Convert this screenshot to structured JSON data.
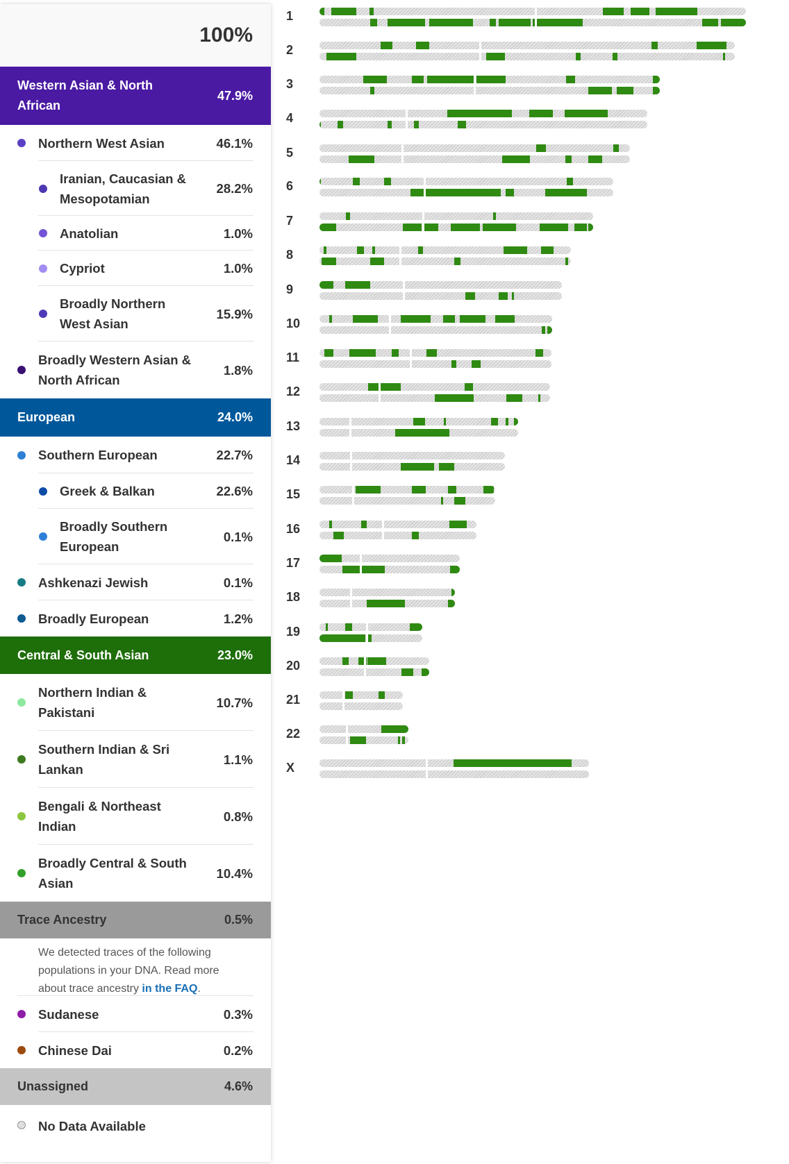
{
  "summary": {
    "total": "100%"
  },
  "sections": [
    {
      "id": "wana",
      "label": "Western Asian & North African",
      "pct": "47.9%",
      "color": "#4a1aa3",
      "rows": [
        {
          "label": "Northern West Asian",
          "pct": "46.1%",
          "level": 1,
          "dot": "#5b3fc4",
          "h": 52
        },
        {
          "label": "Iranian, Caucasian & Mesopotamian",
          "pct": "28.2%",
          "level": 2,
          "dot": "#4e38b2",
          "h": 79
        },
        {
          "label": "Anatolian",
          "pct": "1.0%",
          "level": 2,
          "dot": "#7354d6",
          "h": 50
        },
        {
          "label": "Cypriot",
          "pct": "1.0%",
          "level": 2,
          "dot": "#a28df2",
          "h": 51
        },
        {
          "label": "Broadly Northern West Asian",
          "pct": "15.9%",
          "level": 2,
          "dot": "#4e3ab8",
          "h": 80
        },
        {
          "label": "Broadly Western Asian & North African",
          "pct": "1.8%",
          "level": 1,
          "dot": "#3a0f73",
          "h": 82
        }
      ]
    },
    {
      "id": "eur",
      "label": "European",
      "pct": "24.0%",
      "color": "#00589a",
      "rows": [
        {
          "label": "Southern European",
          "pct": "22.7%",
          "level": 1,
          "dot": "#2d7fd6",
          "h": 53
        },
        {
          "label": "Greek & Balkan",
          "pct": "22.6%",
          "level": 2,
          "dot": "#0f4ca6",
          "h": 51
        },
        {
          "label": "Broadly Southern European",
          "pct": "0.1%",
          "level": 2,
          "dot": "#2f7fd9",
          "h": 80
        },
        {
          "label": "Ashkenazi Jewish",
          "pct": "0.1%",
          "level": 1,
          "dot": "#177d84",
          "h": 52
        },
        {
          "label": "Broadly European",
          "pct": "1.2%",
          "level": 1,
          "dot": "#0e5a91",
          "h": 52
        }
      ]
    },
    {
      "id": "csa",
      "label": "Central & South Asian",
      "pct": "23.0%",
      "color": "#1e6e0a",
      "rows": [
        {
          "label": "Northern Indian & Pakistani",
          "pct": "10.7%",
          "level": 1,
          "dot": "#8fe8a0",
          "h": 82
        },
        {
          "label": "Southern Indian & Sri Lankan",
          "pct": "1.1%",
          "level": 1,
          "dot": "#3d7a1f",
          "h": 82
        },
        {
          "label": "Bengali & Northeast Indian",
          "pct": "0.8%",
          "level": 1,
          "dot": "#8cc63f",
          "h": 82
        },
        {
          "label": "Broadly Central & South Asian",
          "pct": "10.4%",
          "level": 1,
          "dot": "#33a02c",
          "h": 82
        }
      ]
    }
  ],
  "trace": {
    "label": "Trace Ancestry",
    "pct": "0.5%",
    "color": "#9a9a9a",
    "text_before": "We detected traces of the following populations in your DNA. Read more about trace ancestry ",
    "link_text": "in the FAQ",
    "text_after": ".",
    "rows": [
      {
        "label": "Sudanese",
        "pct": "0.3%",
        "level": 1,
        "dot": "#8e1ea8",
        "h": 52
      },
      {
        "label": "Chinese Dai",
        "pct": "0.2%",
        "level": 1,
        "dot": "#9b4a0e",
        "h": 52
      }
    ]
  },
  "unassigned": {
    "label": "Unassigned",
    "pct": "4.6%",
    "color": "#c4c4c4"
  },
  "no_data": {
    "label": "No Data Available"
  },
  "chromosomes": [
    {
      "n": "1",
      "y": 23,
      "len": 614,
      "c": 310,
      "t1": [
        [
          0,
          7
        ],
        [
          17,
          36
        ],
        [
          72,
          6
        ],
        [
          408,
          30
        ],
        [
          448,
          27
        ],
        [
          484,
          60
        ]
      ],
      "t2": [
        [
          73,
          10
        ],
        [
          98,
          54
        ],
        [
          158,
          63
        ],
        [
          245,
          9
        ],
        [
          258,
          46
        ],
        [
          307,
          72
        ],
        [
          551,
          23
        ],
        [
          578,
          36
        ]
      ]
    },
    {
      "n": "2",
      "y": 72,
      "len": 598,
      "c": 230,
      "t1": [
        [
          88,
          17
        ],
        [
          139,
          19
        ],
        [
          478,
          9
        ],
        [
          543,
          43
        ]
      ],
      "t2": [
        [
          10,
          43
        ],
        [
          240,
          27
        ],
        [
          369,
          7
        ],
        [
          422,
          7
        ],
        [
          581,
          3
        ]
      ]
    },
    {
      "n": "3",
      "y": 121,
      "len": 490,
      "c": 222,
      "t1": [
        [
          63,
          34
        ],
        [
          133,
          17
        ],
        [
          155,
          68
        ],
        [
          226,
          42
        ],
        [
          355,
          13
        ],
        [
          480,
          10
        ]
      ],
      "t2": [
        [
          73,
          6
        ],
        [
          387,
          34
        ],
        [
          428,
          24
        ],
        [
          480,
          10
        ]
      ]
    },
    {
      "n": "4",
      "y": 170,
      "len": 472,
      "c": 124,
      "t1": [
        [
          184,
          93
        ],
        [
          302,
          34
        ],
        [
          353,
          62
        ]
      ],
      "t2": [
        [
          0,
          2
        ],
        [
          26,
          8
        ],
        [
          98,
          6
        ],
        [
          136,
          7
        ],
        [
          199,
          12
        ]
      ]
    },
    {
      "n": "5",
      "y": 220,
      "len": 447,
      "c": 118,
      "t1": [
        [
          312,
          14
        ],
        [
          423,
          8
        ]
      ],
      "t2": [
        [
          42,
          37
        ],
        [
          263,
          40
        ],
        [
          354,
          9
        ],
        [
          387,
          20
        ]
      ]
    },
    {
      "n": "6",
      "y": 268,
      "len": 423,
      "c": 150,
      "t1": [
        [
          0,
          2
        ],
        [
          48,
          10
        ],
        [
          93,
          10
        ],
        [
          356,
          9
        ]
      ],
      "t2": [
        [
          131,
          22
        ],
        [
          153,
          108
        ],
        [
          268,
          12
        ],
        [
          325,
          60
        ]
      ]
    },
    {
      "n": "7",
      "y": 318,
      "len": 394,
      "c": 148,
      "t1": [
        [
          38,
          6
        ],
        [
          250,
          4
        ]
      ],
      "t2": [
        [
          0,
          24
        ],
        [
          120,
          27
        ],
        [
          149,
          22
        ],
        [
          189,
          42
        ],
        [
          235,
          48
        ],
        [
          317,
          41
        ],
        [
          367,
          18
        ],
        [
          387,
          7
        ]
      ]
    },
    {
      "n": "8",
      "y": 367,
      "len": 362,
      "c": 115,
      "t1": [
        [
          6,
          4
        ],
        [
          54,
          10
        ],
        [
          76,
          4
        ],
        [
          142,
          7
        ],
        [
          265,
          34
        ],
        [
          319,
          18
        ]
      ],
      "t2": [
        [
          3,
          21
        ],
        [
          73,
          20
        ],
        [
          194,
          9
        ],
        [
          354,
          4
        ]
      ]
    },
    {
      "n": "9",
      "y": 417,
      "len": 349,
      "c": 120,
      "t1": [
        [
          0,
          20
        ],
        [
          37,
          36
        ]
      ],
      "t2": [
        [
          210,
          14
        ],
        [
          258,
          13
        ],
        [
          277,
          3
        ]
      ]
    },
    {
      "n": "10",
      "y": 466,
      "len": 335,
      "c": 100,
      "t1": [
        [
          14,
          4
        ],
        [
          48,
          36
        ],
        [
          117,
          43
        ],
        [
          178,
          17
        ],
        [
          202,
          37
        ],
        [
          253,
          28
        ]
      ],
      "t2": [
        [
          320,
          5
        ],
        [
          328,
          7
        ]
      ]
    },
    {
      "n": "11",
      "y": 515,
      "len": 334,
      "c": 130,
      "t1": [
        [
          7,
          13
        ],
        [
          43,
          38
        ],
        [
          104,
          10
        ],
        [
          154,
          15
        ],
        [
          311,
          11
        ]
      ],
      "t2": [
        [
          190,
          7
        ],
        [
          219,
          13
        ]
      ]
    },
    {
      "n": "12",
      "y": 564,
      "len": 332,
      "c": 85,
      "t1": [
        [
          70,
          20
        ],
        [
          90,
          27
        ],
        [
          209,
          12
        ]
      ],
      "t2": [
        [
          166,
          56
        ],
        [
          269,
          23
        ],
        [
          315,
          3
        ]
      ]
    },
    {
      "n": "13",
      "y": 614,
      "len": 286,
      "c": 43,
      "t1": [
        [
          135,
          17
        ],
        [
          179,
          3
        ],
        [
          247,
          10
        ],
        [
          268,
          4
        ],
        [
          280,
          6
        ]
      ],
      "t2": [
        [
          109,
          78
        ]
      ]
    },
    {
      "n": "14",
      "y": 663,
      "len": 267,
      "c": 44,
      "t1": [],
      "t2": [
        [
          117,
          48
        ],
        [
          172,
          22
        ]
      ]
    },
    {
      "n": "15",
      "y": 712,
      "len": 253,
      "c": 47,
      "t1": [
        [
          52,
          36
        ],
        [
          133,
          20
        ],
        [
          185,
          12
        ],
        [
          236,
          15
        ]
      ],
      "t2": [
        [
          175,
          3
        ],
        [
          194,
          16
        ]
      ]
    },
    {
      "n": "16",
      "y": 762,
      "len": 226,
      "c": 90,
      "t1": [
        [
          14,
          4
        ],
        [
          60,
          8
        ],
        [
          187,
          25
        ]
      ],
      "t2": [
        [
          20,
          15
        ],
        [
          133,
          10
        ]
      ]
    },
    {
      "n": "17",
      "y": 811,
      "len": 202,
      "c": 58,
      "t1": [
        [
          0,
          32
        ]
      ],
      "t2": [
        [
          33,
          25
        ],
        [
          60,
          34
        ],
        [
          188,
          14
        ]
      ]
    },
    {
      "n": "18",
      "y": 860,
      "len": 195,
      "c": 44,
      "t1": [
        [
          190,
          5
        ]
      ],
      "t2": [
        [
          68,
          55
        ],
        [
          185,
          10
        ]
      ]
    },
    {
      "n": "19",
      "y": 910,
      "len": 148,
      "c": 67,
      "t1": [
        [
          9,
          3
        ],
        [
          37,
          10
        ],
        [
          130,
          18
        ]
      ],
      "t2": [
        [
          0,
          66
        ],
        [
          68,
          7
        ]
      ]
    },
    {
      "n": "20",
      "y": 959,
      "len": 158,
      "c": 64,
      "t1": [
        [
          33,
          9
        ],
        [
          56,
          12
        ],
        [
          69,
          27
        ]
      ],
      "t2": [
        [
          118,
          17
        ],
        [
          147,
          11
        ]
      ]
    },
    {
      "n": "21",
      "y": 1008,
      "len": 120,
      "c": 33,
      "t1": [
        [
          37,
          11
        ],
        [
          85,
          9
        ]
      ],
      "t2": []
    },
    {
      "n": "22",
      "y": 1057,
      "len": 128,
      "c": 38,
      "t1": [
        [
          89,
          39
        ]
      ],
      "t2": [
        [
          44,
          23
        ],
        [
          113,
          3
        ],
        [
          119,
          4
        ]
      ]
    },
    {
      "n": "X",
      "y": 1106,
      "len": 388,
      "c": 153,
      "t1": [
        [
          193,
          170
        ]
      ],
      "t2": []
    }
  ]
}
